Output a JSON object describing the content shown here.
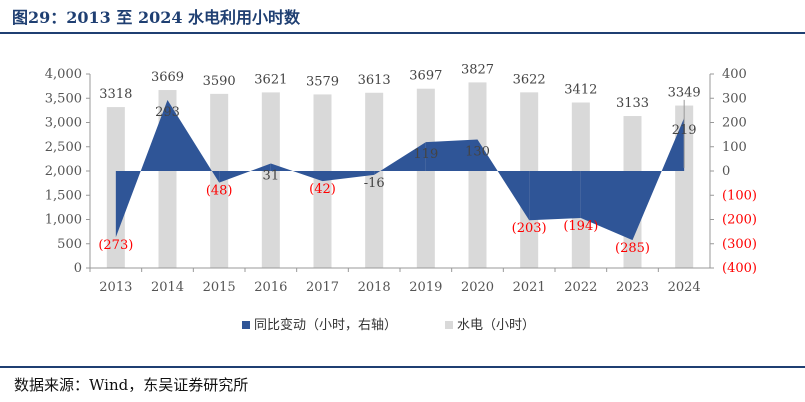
{
  "header": {
    "title": "图29：2013 至 2024 水电利用小时数"
  },
  "footer": {
    "source": "数据来源：Wind，东吴证券研究所"
  },
  "colors": {
    "bar": "#d9d9d9",
    "area": "#2f5597",
    "negative_label": "#ff0000",
    "title": "#1f3f72"
  },
  "chart_data": {
    "type": "bar",
    "categories": [
      "2013",
      "2014",
      "2015",
      "2016",
      "2017",
      "2018",
      "2019",
      "2020",
      "2021",
      "2022",
      "2023",
      "2024"
    ],
    "series": [
      {
        "name": "同比变动（小时，右轴）",
        "kind": "area",
        "axis": "right",
        "values": [
          -273,
          293,
          -48,
          31,
          -42,
          -16,
          119,
          130,
          -203,
          -194,
          -285,
          219
        ],
        "labels": [
          "(273)",
          "293",
          "(48)",
          "31",
          "(42)",
          "-16",
          "119",
          "130",
          "(203)",
          "(194)",
          "(285)",
          "219"
        ]
      },
      {
        "name": "水电（小时）",
        "kind": "bar",
        "axis": "left",
        "values": [
          3318,
          3669,
          3590,
          3621,
          3579,
          3613,
          3697,
          3827,
          3622,
          3412,
          3133,
          3349
        ],
        "labels": [
          "3318",
          "3669",
          "3590",
          "3621",
          "3579",
          "3613",
          "3697",
          "3827",
          "3622",
          "3412",
          "3133",
          "3349"
        ]
      }
    ],
    "left_axis": {
      "ylim": [
        0,
        4000
      ],
      "ticks": [
        "0",
        "500",
        "1,000",
        "1,500",
        "2,000",
        "2,500",
        "3,000",
        "3,500",
        "4,000"
      ]
    },
    "right_axis": {
      "ylim": [
        -400,
        400
      ],
      "ticks": [
        "(400)",
        "(300)",
        "(200)",
        "(100)",
        "0",
        "100",
        "200",
        "300",
        "400"
      ]
    },
    "legend": [
      "同比变动（小时，右轴）",
      "水电（小时）"
    ],
    "legend_position": "bottom",
    "grid": false
  }
}
